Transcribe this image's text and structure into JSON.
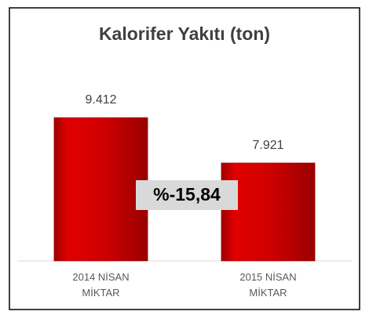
{
  "chart_data": {
    "type": "bar",
    "title": "Kalorifer Yakıtı (ton)",
    "categories": [
      "2014 NİSAN MİKTAR",
      "2015 NİSAN MİKTAR"
    ],
    "values": [
      9412,
      7921
    ],
    "value_labels": [
      "9.412",
      "7.921"
    ],
    "color": "#c00000",
    "ylim": [
      4700,
      10700
    ],
    "annotation": "%-15,84"
  }
}
